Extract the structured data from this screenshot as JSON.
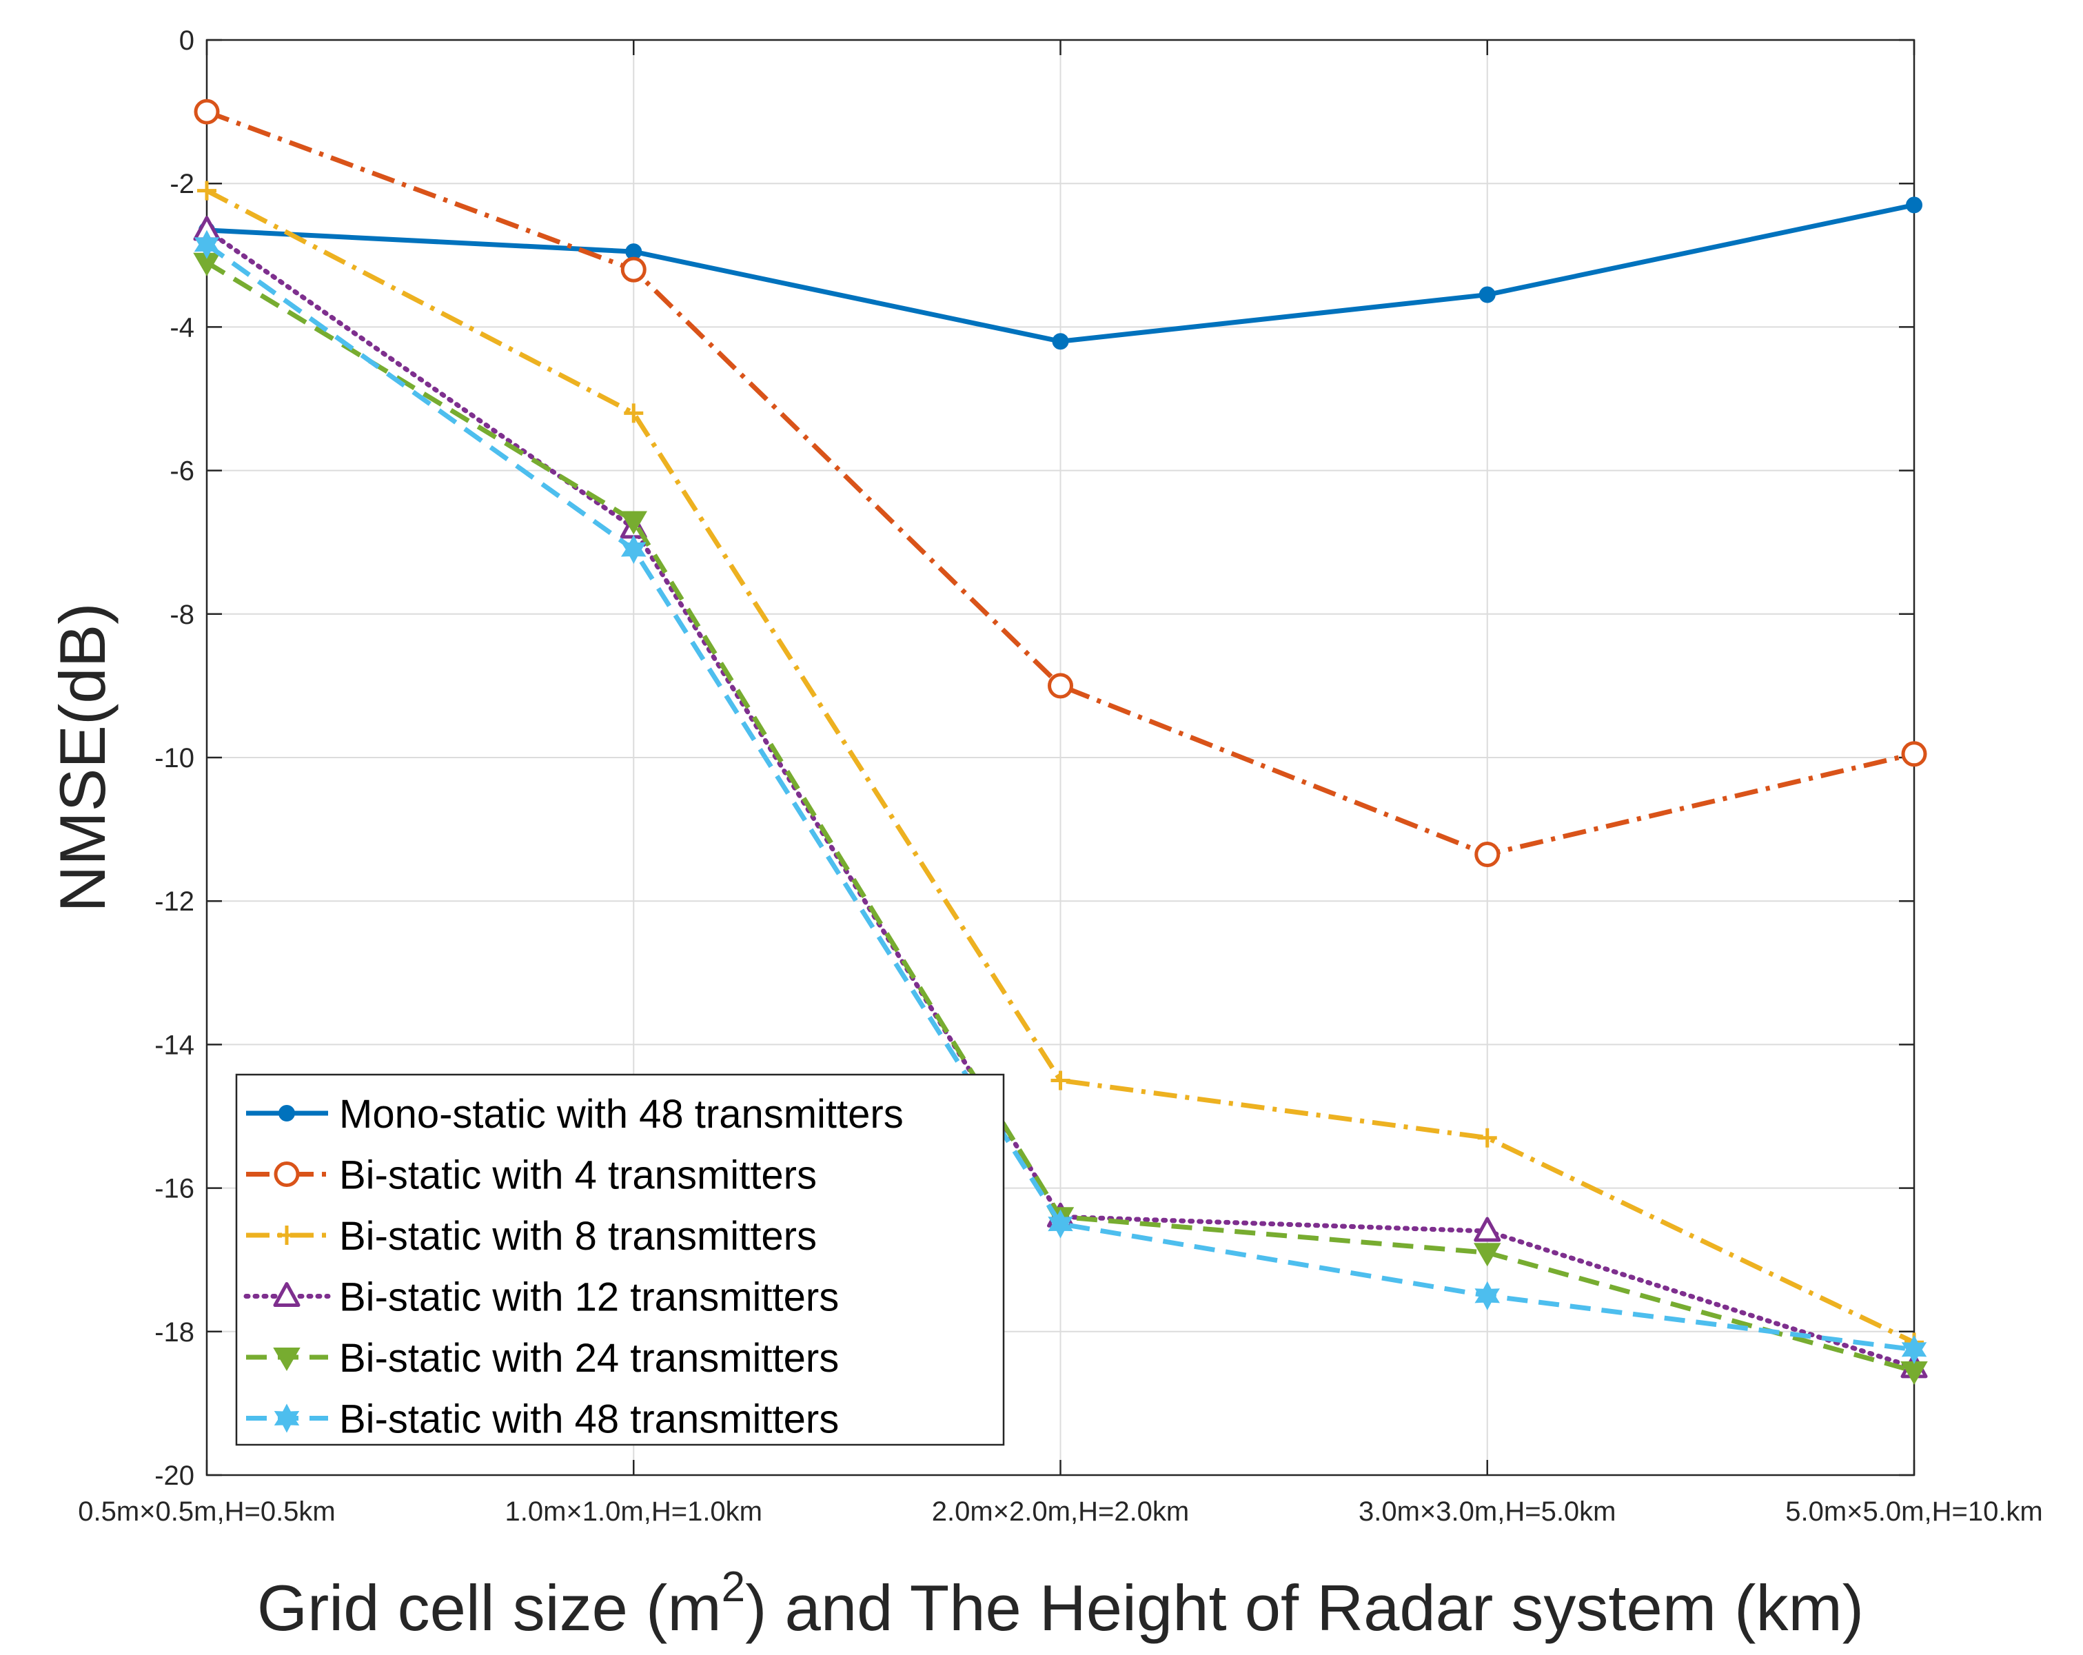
{
  "chart_data": {
    "type": "line",
    "title": "",
    "xlabel": "Grid cell size (m²) and The Height of Radar system (km)",
    "xlabel_parts": {
      "before": "Grid cell size (m",
      "superscript": "2",
      "after": ") and The Height of Radar system (km)"
    },
    "ylabel": "NMSE(dB)",
    "categories": [
      "0.5m×0.5m,H=0.5km",
      "1.0m×1.0m,H=1.0km",
      "2.0m×2.0m,H=2.0km",
      "3.0m×3.0m,H=5.0km",
      "5.0m×5.0m,H=10.km"
    ],
    "ylim": [
      -20,
      0
    ],
    "yticks": [
      0,
      -2,
      -4,
      -6,
      -8,
      -10,
      -12,
      -14,
      -16,
      -18,
      -20
    ],
    "grid": true,
    "legend_position": "bottom-left",
    "series": [
      {
        "name": "Mono-static with 48 transmitters",
        "values": [
          -2.65,
          -2.95,
          -4.2,
          -3.55,
          -2.3
        ],
        "color": "#0072BD",
        "dash": "solid",
        "marker": "dot"
      },
      {
        "name": "Bi-static with 4 transmitters",
        "values": [
          -1.0,
          -3.2,
          -9.0,
          -11.35,
          -9.95
        ],
        "color": "#D95319",
        "dash": "dashdot",
        "marker": "circle"
      },
      {
        "name": "Bi-static with 8 transmitters",
        "values": [
          -2.1,
          -5.2,
          -14.5,
          -15.3,
          -18.15
        ],
        "color": "#EDB120",
        "dash": "dashdot",
        "marker": "plus"
      },
      {
        "name": "Bi-static with 12 transmitters",
        "values": [
          -2.65,
          -6.8,
          -16.4,
          -16.6,
          -18.5
        ],
        "color": "#7E2F8E",
        "dash": "dotted",
        "marker": "triangle-up"
      },
      {
        "name": "Bi-static with 24 transmitters",
        "values": [
          -3.1,
          -6.7,
          -16.4,
          -16.9,
          -18.55
        ],
        "color": "#77AC30",
        "dash": "dashed",
        "marker": "triangle-down"
      },
      {
        "name": "Bi-static with 48 transmitters",
        "values": [
          -2.85,
          -7.1,
          -16.5,
          -17.5,
          -18.25
        ],
        "color": "#4DBEEE",
        "dash": "dashed",
        "marker": "hexagram"
      }
    ]
  }
}
